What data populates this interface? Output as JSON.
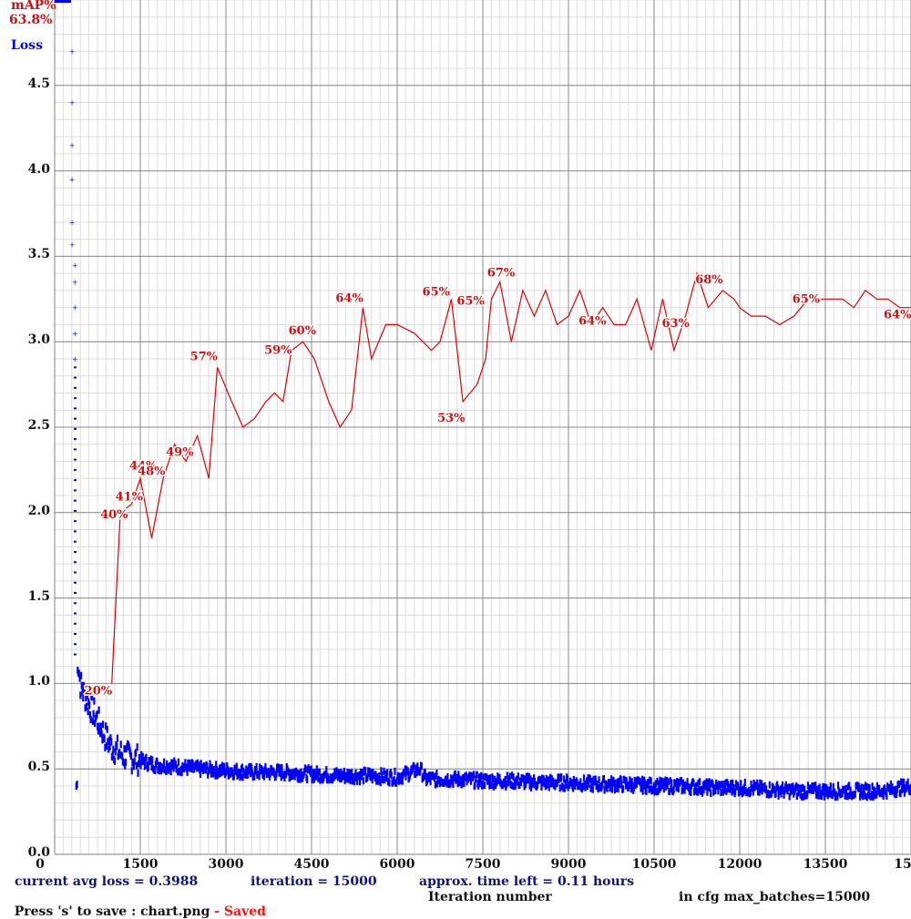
{
  "legend": {
    "map_label": "mAP%",
    "map_value": "63.8%",
    "loss_label": "Loss",
    "map_color": "#d01010",
    "loss_color": "#0000ff"
  },
  "status": {
    "avg_loss": "current avg loss = 0.3988",
    "iteration": "iteration = 15000",
    "time_left": "approx. time left = 0.11 hours",
    "save_hint": "Press 's' to save : chart.png",
    "saved": " - Saved",
    "xlabel": "Iteration number",
    "max_batches": "in cfg max_batches=15000"
  },
  "chart_data": {
    "type": "line",
    "title": "",
    "xlabel": "Iteration number",
    "ylabel": "Loss",
    "xlim": [
      0,
      15000
    ],
    "ylim": [
      0,
      5.0
    ],
    "grid": true,
    "x_ticks": [
      "0",
      "1500",
      "3000",
      "4500",
      "6000",
      "7500",
      "9000",
      "10500",
      "12000",
      "13500",
      "15"
    ],
    "y_ticks": [
      "0.0",
      "0.5",
      "1.0",
      "1.5",
      "2.0",
      "2.5",
      "3.0",
      "3.5",
      "4.0",
      "4.5"
    ],
    "series": [
      {
        "name": "mAP%",
        "color": "#d01010",
        "x": [
          1000,
          1150,
          1350,
          1500,
          1700,
          1900,
          2100,
          2300,
          2500,
          2700,
          2850,
          3100,
          3300,
          3500,
          3700,
          3850,
          4000,
          4150,
          4350,
          4550,
          4800,
          5000,
          5200,
          5400,
          5550,
          5800,
          6000,
          6300,
          6600,
          6750,
          6950,
          7150,
          7400,
          7550,
          7650,
          7800,
          8000,
          8200,
          8400,
          8600,
          8800,
          9000,
          9200,
          9400,
          9600,
          9800,
          10000,
          10200,
          10450,
          10650,
          10850,
          11050,
          11250,
          11450,
          11700,
          11900,
          12000,
          12200,
          12450,
          12700,
          12950,
          13200,
          13400,
          13550,
          13800,
          14000,
          14200,
          14400,
          14600,
          14800,
          15000
        ],
        "values": [
          20,
          40,
          41,
          44,
          37,
          44,
          48,
          46,
          49,
          44,
          57,
          53,
          50,
          51,
          53,
          54,
          53,
          59,
          60,
          58,
          53,
          50,
          52,
          64,
          58,
          62,
          62,
          61,
          59,
          60,
          65,
          53,
          55,
          58,
          65,
          67,
          60,
          66,
          63,
          66,
          62,
          63,
          66,
          62,
          64,
          62,
          62,
          65,
          59,
          65,
          59,
          63,
          68,
          64,
          66,
          65,
          64,
          63,
          63,
          62,
          63,
          65,
          65,
          65,
          65,
          64,
          66,
          65,
          65,
          64,
          64
        ],
        "labels": [
          {
            "x": 1000,
            "text": "20%"
          },
          {
            "x": 1150,
            "text": "40%"
          },
          {
            "x": 1350,
            "text": "41%"
          },
          {
            "x": 1500,
            "text": "44%"
          },
          {
            "x": 1900,
            "text": "48%"
          },
          {
            "x": 2300,
            "text": "49%"
          },
          {
            "x": 2850,
            "text": "57%"
          },
          {
            "x": 4150,
            "text": "59%"
          },
          {
            "x": 4350,
            "text": "60%"
          },
          {
            "x": 5400,
            "text": "64%"
          },
          {
            "x": 6950,
            "text": "65%"
          },
          {
            "x": 7150,
            "text": "53%"
          },
          {
            "x": 7650,
            "text": "65%"
          },
          {
            "x": 7800,
            "text": "67%"
          },
          {
            "x": 9400,
            "text": "64%"
          },
          {
            "x": 11050,
            "text": "63%"
          },
          {
            "x": 11700,
            "text": "68%"
          },
          {
            "x": 13400,
            "text": "65%"
          },
          {
            "x": 15000,
            "text": "64%"
          }
        ],
        "scale_note": "mAP plotted so that 100% = 5.0 on loss axis"
      },
      {
        "name": "Loss",
        "color": "#0000ff",
        "x": [
          300,
          300,
          300,
          300,
          300,
          300,
          350,
          350,
          350,
          350,
          350,
          400,
          450,
          500,
          600,
          700,
          800,
          900,
          1000,
          1200,
          1400,
          1600,
          1800,
          2000,
          2500,
          3000,
          3500,
          4000,
          4500,
          5000,
          5500,
          6000,
          6400,
          6500,
          7000,
          7500,
          8000,
          8500,
          9000,
          9500,
          10000,
          10500,
          11000,
          11500,
          12000,
          12500,
          13000,
          13500,
          14000,
          14500,
          15000
        ],
        "values": [
          4.7,
          4.4,
          4.15,
          3.95,
          3.7,
          3.57,
          3.45,
          3.35,
          3.2,
          3.05,
          2.9,
          1.15,
          1.0,
          0.95,
          0.88,
          0.82,
          0.75,
          0.68,
          0.63,
          0.58,
          0.56,
          0.54,
          0.52,
          0.52,
          0.5,
          0.49,
          0.48,
          0.48,
          0.47,
          0.46,
          0.46,
          0.45,
          0.5,
          0.44,
          0.44,
          0.43,
          0.43,
          0.42,
          0.42,
          0.41,
          0.41,
          0.4,
          0.4,
          0.39,
          0.39,
          0.38,
          0.37,
          0.37,
          0.37,
          0.37,
          0.4
        ]
      }
    ],
    "annotations": [
      "current avg loss = 0.3988",
      "iteration = 15000",
      "approx. time left = 0.11 hours",
      "in cfg max_batches=15000"
    ]
  }
}
